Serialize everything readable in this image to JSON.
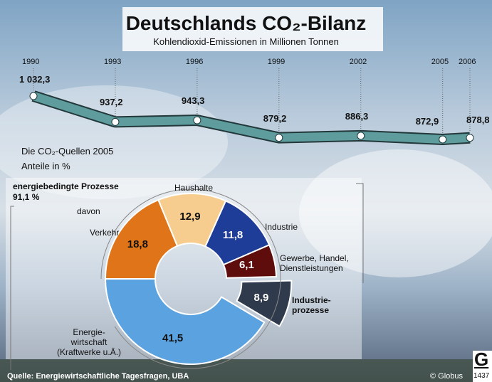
{
  "chart_data": [
    {
      "type": "line",
      "title": "Deutschlands CO₂-Bilanz",
      "subtitle": "Kohlendioxid-Emissionen in Millionen Tonnen",
      "x": [
        1990,
        1993,
        1996,
        1999,
        2002,
        2005,
        2006
      ],
      "values": [
        1032.3,
        937.2,
        943.3,
        879.2,
        886.3,
        872.9,
        878.8
      ],
      "value_labels": [
        "1 032,3",
        "937,2",
        "943,3",
        "879,2",
        "886,3",
        "872,9",
        "878,8"
      ],
      "color": "#5e9c9e"
    },
    {
      "type": "pie",
      "title": "Die CO₂-Quellen 2005",
      "subtitle": "Anteile in %",
      "group": {
        "label": "energiebedingte Prozesse",
        "value": 91.1,
        "value_label": "91,1 %",
        "note": "davon"
      },
      "categories": [
        "Verkehr",
        "Haushalte",
        "Industrie",
        "Gewerbe, Handel,\nDienstleistungen",
        "Industrie-\nprozesse",
        "Energie-\nwirtschaft\n(Kraftwerke u.Ä.)"
      ],
      "values": [
        18.8,
        12.9,
        11.8,
        6.1,
        8.9,
        41.5
      ],
      "value_labels": [
        "18,8",
        "12,9",
        "11,8",
        "6,1",
        "8,9",
        "41,5"
      ],
      "colors": [
        "#e07418",
        "#f6cd8f",
        "#1e3d98",
        "#5e0c0c",
        "#2f3b4c",
        "#5aa2e0"
      ],
      "exploded": [
        false,
        false,
        false,
        false,
        true,
        false
      ]
    }
  ],
  "footer": {
    "source": "Quelle: Energiewirtschaftliche Tagesfragen, UBA",
    "credit": "© Globus",
    "logo": "G",
    "code": "1437"
  }
}
